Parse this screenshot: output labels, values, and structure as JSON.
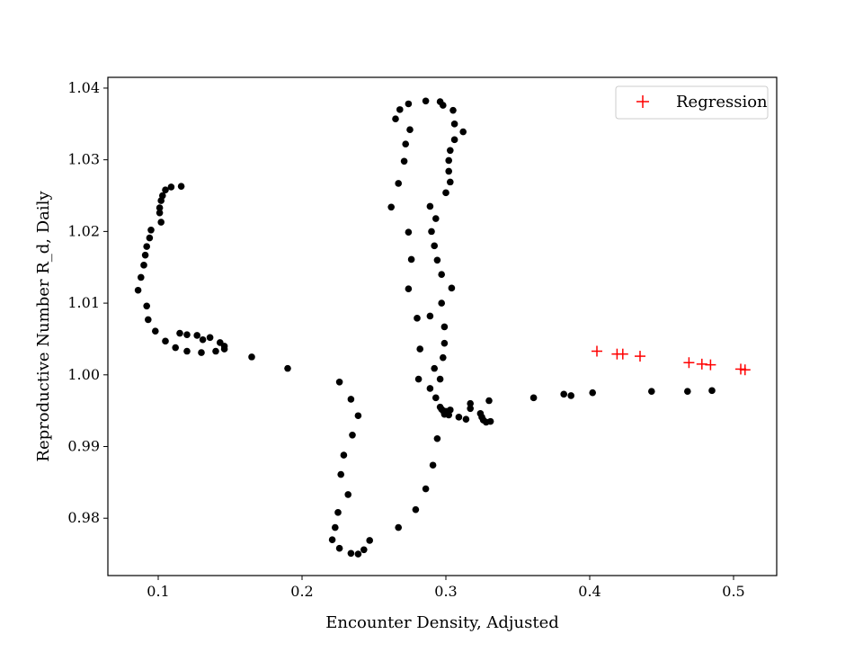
{
  "chart_data": {
    "type": "scatter",
    "title": "",
    "xlabel": "Encounter Density, Adjusted",
    "ylabel": "Reproductive Number R_d, Daily",
    "xlim": [
      0.065,
      0.53
    ],
    "ylim": [
      0.972,
      1.0415
    ],
    "xticks": [
      0.1,
      0.2,
      0.3,
      0.4,
      0.5
    ],
    "xtick_labels": [
      "0.1",
      "0.2",
      "0.3",
      "0.4",
      "0.5"
    ],
    "yticks": [
      0.98,
      0.99,
      1.0,
      1.01,
      1.02,
      1.03,
      1.04
    ],
    "ytick_labels": [
      "0.98",
      "0.99",
      "1.00",
      "1.01",
      "1.02",
      "1.03",
      "1.04"
    ],
    "grid": false,
    "legend": {
      "placement": "top-right",
      "entries": [
        "Regression"
      ]
    },
    "colors": {
      "data": "#000000",
      "regression": "#ff0000"
    },
    "series": [
      {
        "marker": "dot",
        "points": [
          [
            0.116,
            1.0263
          ],
          [
            0.109,
            1.0262
          ],
          [
            0.105,
            1.0258
          ],
          [
            0.103,
            1.025
          ],
          [
            0.102,
            1.0243
          ],
          [
            0.101,
            1.0233
          ],
          [
            0.101,
            1.0226
          ],
          [
            0.102,
            1.0213
          ],
          [
            0.095,
            1.0202
          ],
          [
            0.094,
            1.0191
          ],
          [
            0.092,
            1.0179
          ],
          [
            0.091,
            1.0167
          ],
          [
            0.09,
            1.0153
          ],
          [
            0.088,
            1.0136
          ],
          [
            0.086,
            1.0118
          ],
          [
            0.092,
            1.0096
          ],
          [
            0.093,
            1.0077
          ],
          [
            0.098,
            1.0061
          ],
          [
            0.105,
            1.0047
          ],
          [
            0.112,
            1.0038
          ],
          [
            0.12,
            1.0033
          ],
          [
            0.13,
            1.0031
          ],
          [
            0.14,
            1.0033
          ],
          [
            0.146,
            1.0036
          ],
          [
            0.146,
            1.004
          ],
          [
            0.143,
            1.0045
          ],
          [
            0.136,
            1.0052
          ],
          [
            0.131,
            1.0049
          ],
          [
            0.127,
            1.0055
          ],
          [
            0.12,
            1.0056
          ],
          [
            0.115,
            1.0058
          ],
          [
            0.165,
            1.0025
          ],
          [
            0.19,
            1.0009
          ],
          [
            0.226,
            0.999
          ],
          [
            0.234,
            0.9966
          ],
          [
            0.239,
            0.9943
          ],
          [
            0.235,
            0.9916
          ],
          [
            0.229,
            0.9888
          ],
          [
            0.227,
            0.9861
          ],
          [
            0.232,
            0.9833
          ],
          [
            0.225,
            0.9808
          ],
          [
            0.223,
            0.9787
          ],
          [
            0.221,
            0.977
          ],
          [
            0.226,
            0.9758
          ],
          [
            0.234,
            0.9751
          ],
          [
            0.239,
            0.975
          ],
          [
            0.243,
            0.9756
          ],
          [
            0.247,
            0.9769
          ],
          [
            0.267,
            0.9787
          ],
          [
            0.279,
            0.9812
          ],
          [
            0.286,
            0.9841
          ],
          [
            0.291,
            0.9874
          ],
          [
            0.294,
            0.9911
          ],
          [
            0.309,
            0.9941
          ],
          [
            0.302,
            0.9944
          ],
          [
            0.301,
            0.9948
          ],
          [
            0.298,
            0.995
          ],
          [
            0.296,
            0.9955
          ],
          [
            0.293,
            0.9968
          ],
          [
            0.289,
            0.9981
          ],
          [
            0.281,
            0.9994
          ],
          [
            0.292,
            1.0009
          ],
          [
            0.282,
            1.0036
          ],
          [
            0.28,
            1.0079
          ],
          [
            0.274,
            1.012
          ],
          [
            0.276,
            1.0161
          ],
          [
            0.274,
            1.0199
          ],
          [
            0.262,
            1.0234
          ],
          [
            0.267,
            1.0267
          ],
          [
            0.271,
            1.0298
          ],
          [
            0.272,
            1.0322
          ],
          [
            0.275,
            1.0342
          ],
          [
            0.265,
            1.0357
          ],
          [
            0.268,
            1.037
          ],
          [
            0.274,
            1.0378
          ],
          [
            0.286,
            1.0382
          ],
          [
            0.296,
            1.0381
          ],
          [
            0.298,
            1.0376
          ],
          [
            0.305,
            1.0369
          ],
          [
            0.306,
            1.035
          ],
          [
            0.312,
            1.0339
          ],
          [
            0.306,
            1.0328
          ],
          [
            0.303,
            1.0313
          ],
          [
            0.302,
            1.0299
          ],
          [
            0.302,
            1.0284
          ],
          [
            0.303,
            1.0269
          ],
          [
            0.3,
            1.0254
          ],
          [
            0.289,
            1.0235
          ],
          [
            0.293,
            1.0218
          ],
          [
            0.29,
            1.02
          ],
          [
            0.292,
            1.018
          ],
          [
            0.294,
            1.016
          ],
          [
            0.297,
            1.014
          ],
          [
            0.304,
            1.0121
          ],
          [
            0.297,
            1.01
          ],
          [
            0.289,
            1.0082
          ],
          [
            0.299,
            1.0067
          ],
          [
            0.299,
            1.0044
          ],
          [
            0.298,
            1.0024
          ],
          [
            0.296,
            0.9994
          ],
          [
            0.297,
            0.9952
          ],
          [
            0.299,
            0.9945
          ],
          [
            0.3,
            0.9949
          ],
          [
            0.303,
            0.9951
          ],
          [
            0.314,
            0.9938
          ],
          [
            0.317,
            0.996
          ],
          [
            0.317,
            0.9953
          ],
          [
            0.324,
            0.9946
          ],
          [
            0.325,
            0.9941
          ],
          [
            0.326,
            0.9937
          ],
          [
            0.328,
            0.9934
          ],
          [
            0.33,
            0.9964
          ],
          [
            0.331,
            0.9935
          ],
          [
            0.361,
            0.9968
          ],
          [
            0.382,
            0.9973
          ],
          [
            0.387,
            0.9971
          ],
          [
            0.402,
            0.9975
          ],
          [
            0.443,
            0.9977
          ],
          [
            0.468,
            0.9977
          ],
          [
            0.485,
            0.9978
          ]
        ]
      },
      {
        "name": "Regression",
        "marker": "plus",
        "points": [
          [
            0.405,
            1.0033
          ],
          [
            0.419,
            1.0029
          ],
          [
            0.423,
            1.0029
          ],
          [
            0.435,
            1.0026
          ],
          [
            0.469,
            1.0017
          ],
          [
            0.478,
            1.0015
          ],
          [
            0.484,
            1.0014
          ],
          [
            0.505,
            1.0008
          ],
          [
            0.508,
            1.0007
          ]
        ]
      }
    ]
  }
}
